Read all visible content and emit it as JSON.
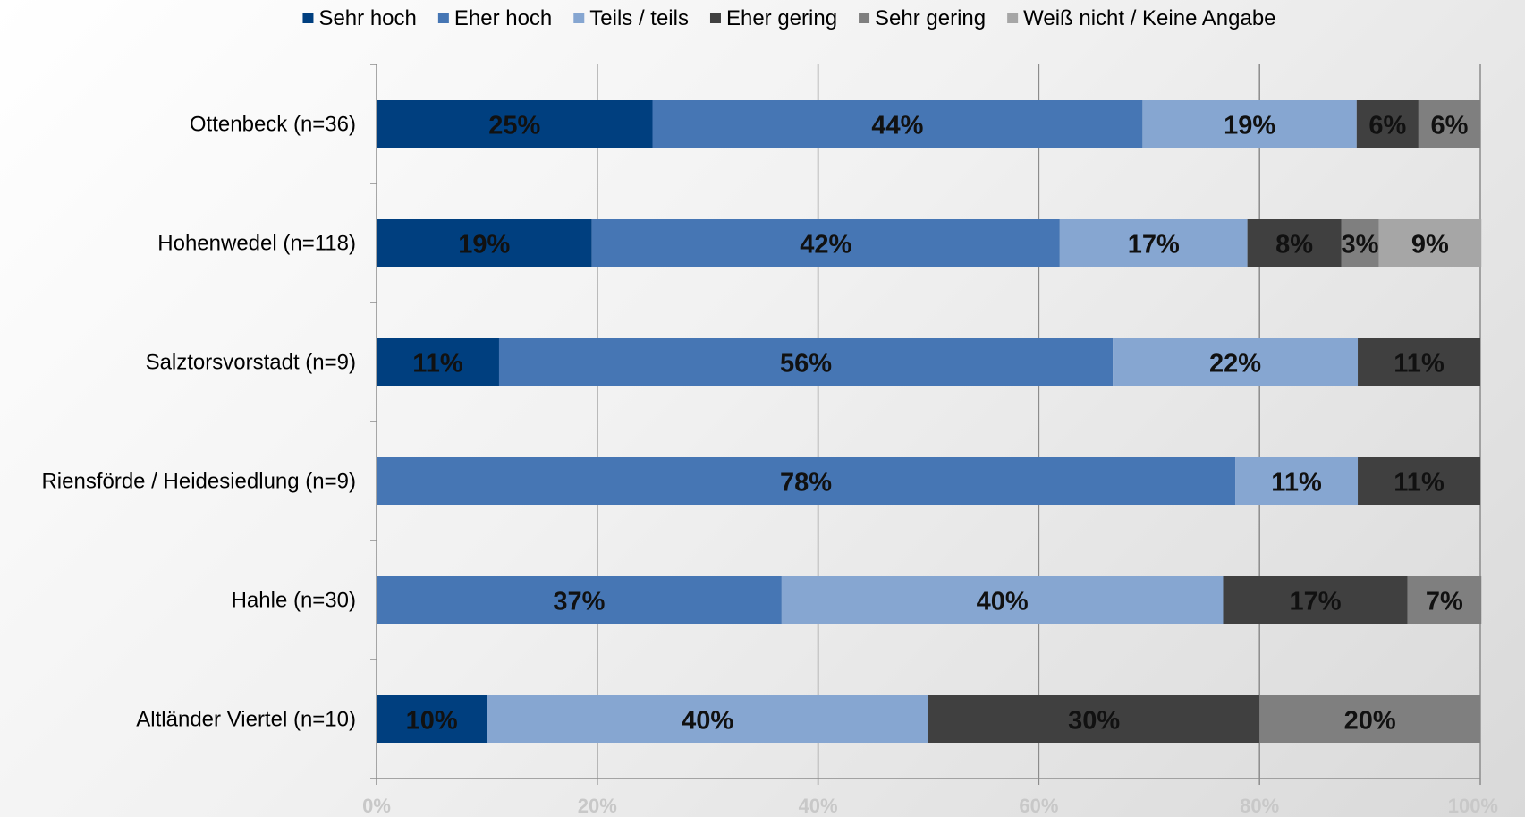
{
  "chart_data": {
    "type": "bar",
    "orientation": "horizontal",
    "stacked": true,
    "categories": [
      "Ottenbeck (n=36)",
      "Hohenwedel (n=118)",
      "Salztorsvorstadt (n=9)",
      "Riensförde / Heidesiedlung (n=9)",
      "Hahle (n=30)",
      "Altländer Viertel (n=10)"
    ],
    "series": [
      {
        "name": "Sehr hoch",
        "color": "#003f7f",
        "values": [
          25,
          19.5,
          11.1,
          0,
          0,
          10
        ]
      },
      {
        "name": "Eher hoch",
        "color": "#4676b4",
        "values": [
          44.4,
          42.4,
          55.6,
          77.8,
          36.7,
          0
        ]
      },
      {
        "name": "Teils / teils",
        "color": "#86a6d1",
        "values": [
          19.4,
          17,
          22.2,
          11.1,
          40,
          40
        ]
      },
      {
        "name": "Eher gering",
        "color": "#404040",
        "values": [
          5.6,
          8.5,
          11.1,
          11.1,
          16.7,
          30
        ]
      },
      {
        "name": "Sehr gering",
        "color": "#7f7f7f",
        "values": [
          5.6,
          3.4,
          0,
          0,
          6.7,
          20
        ]
      },
      {
        "name": "Weiß nicht / Keine Angabe",
        "color": "#a6a6a6",
        "values": [
          0,
          9.3,
          0,
          0,
          0,
          0
        ]
      }
    ],
    "data_labels": [
      [
        "25%",
        "44%",
        "19%",
        "6%",
        "6%",
        ""
      ],
      [
        "19%",
        "42%",
        "17%",
        "8%",
        "3%",
        "9%"
      ],
      [
        "11%",
        "56%",
        "22%",
        "11%",
        "",
        ""
      ],
      [
        "",
        "78%",
        "11%",
        "11%",
        "",
        ""
      ],
      [
        "",
        "37%",
        "40%",
        "17%",
        "7%",
        ""
      ],
      [
        "10%",
        "",
        "40%",
        "30%",
        "20%",
        ""
      ]
    ],
    "x_ticks": [
      "0%",
      "20%",
      "40%",
      "60%",
      "80%",
      "100%"
    ],
    "xlim": [
      0,
      100
    ],
    "grid": true,
    "legend_position": "top"
  }
}
